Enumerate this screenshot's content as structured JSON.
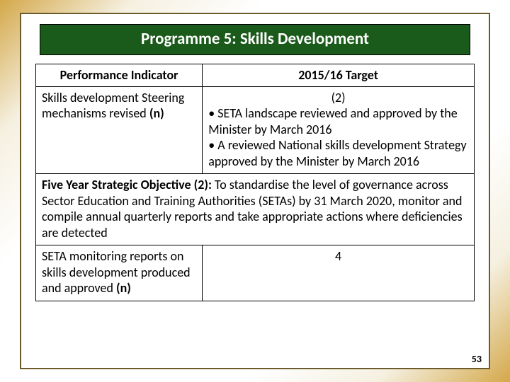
{
  "slide": {
    "title": "Programme 5: Skills Development",
    "page_number": "53",
    "colors": {
      "title_bg": "#1a5a1a",
      "title_text": "#ffffff",
      "frame_border": "#6b5a2a",
      "table_border": "#000000",
      "gradient_outer": "#d4a84a",
      "gradient_mid": "#f5f0e0",
      "gradient_inner": "#ffffff"
    },
    "table": {
      "header": {
        "col1": "Performance Indicator",
        "col2": "2015/16 Target"
      },
      "row1": {
        "indicator_pre": "Skills development Steering mechanisms revised ",
        "indicator_bold": "(n)",
        "target_count": "(2)",
        "bullet1": "• SETA landscape reviewed and approved by the Minister by March 2016",
        "bullet2": "• A reviewed National skills development Strategy approved by the Minister by March 2016"
      },
      "objective": {
        "label": "Five Year Strategic Objective (2): ",
        "text": "To standardise the level of governance across Sector Education and Training Authorities (SETAs) by 31 March 2020, monitor and compile annual quarterly reports and take appropriate actions where deficiencies are detected"
      },
      "row3": {
        "indicator_pre": "SETA monitoring reports on skills development produced and approved ",
        "indicator_bold": "(n)",
        "target": "4"
      }
    }
  }
}
